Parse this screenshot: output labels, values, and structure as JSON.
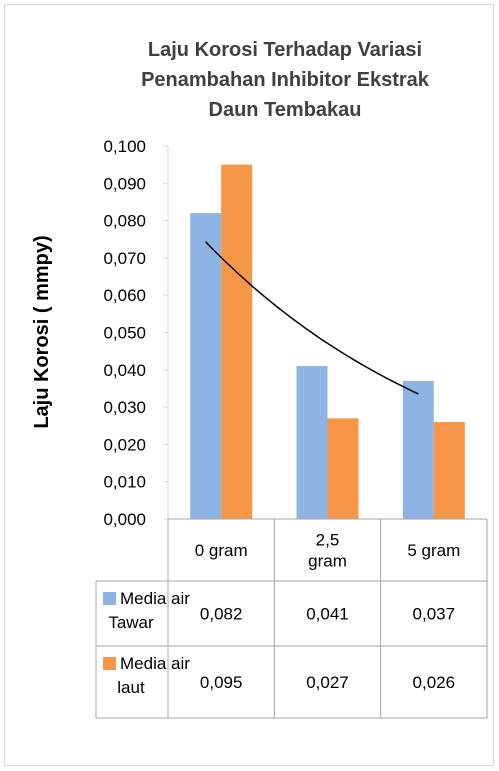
{
  "chart_data": {
    "type": "bar",
    "title_lines": [
      "Laju Korosi Terhadap Variasi",
      "Penambahan Inhibitor Ekstrak",
      "Daun Tembakau"
    ],
    "ylabel": "Laju Korosi ( mmpy)",
    "xlabel": "",
    "ylim": [
      0,
      0.1
    ],
    "yticks": [
      "0,000",
      "0,010",
      "0,020",
      "0,030",
      "0,040",
      "0,050",
      "0,060",
      "0,070",
      "0,080",
      "0,090",
      "0,100"
    ],
    "categories": [
      [
        "0 gram"
      ],
      [
        "2,5",
        "gram"
      ],
      [
        "5 gram"
      ]
    ],
    "series": [
      {
        "name_lines": [
          "Media air",
          "Tawar"
        ],
        "color": "#8db4e2",
        "values": [
          0.082,
          0.041,
          0.037
        ],
        "labels": [
          "0,082",
          "0,041",
          "0,037"
        ]
      },
      {
        "name_lines": [
          "Media air",
          "laut"
        ],
        "color": "#f79646",
        "values": [
          0.095,
          0.027,
          0.026
        ],
        "labels": [
          "0,095",
          "0,027",
          "0,026"
        ]
      }
    ],
    "trendline": {
      "series": 0,
      "type": "exponential",
      "color": "#000000"
    },
    "grid": false,
    "legend": "data-table"
  }
}
